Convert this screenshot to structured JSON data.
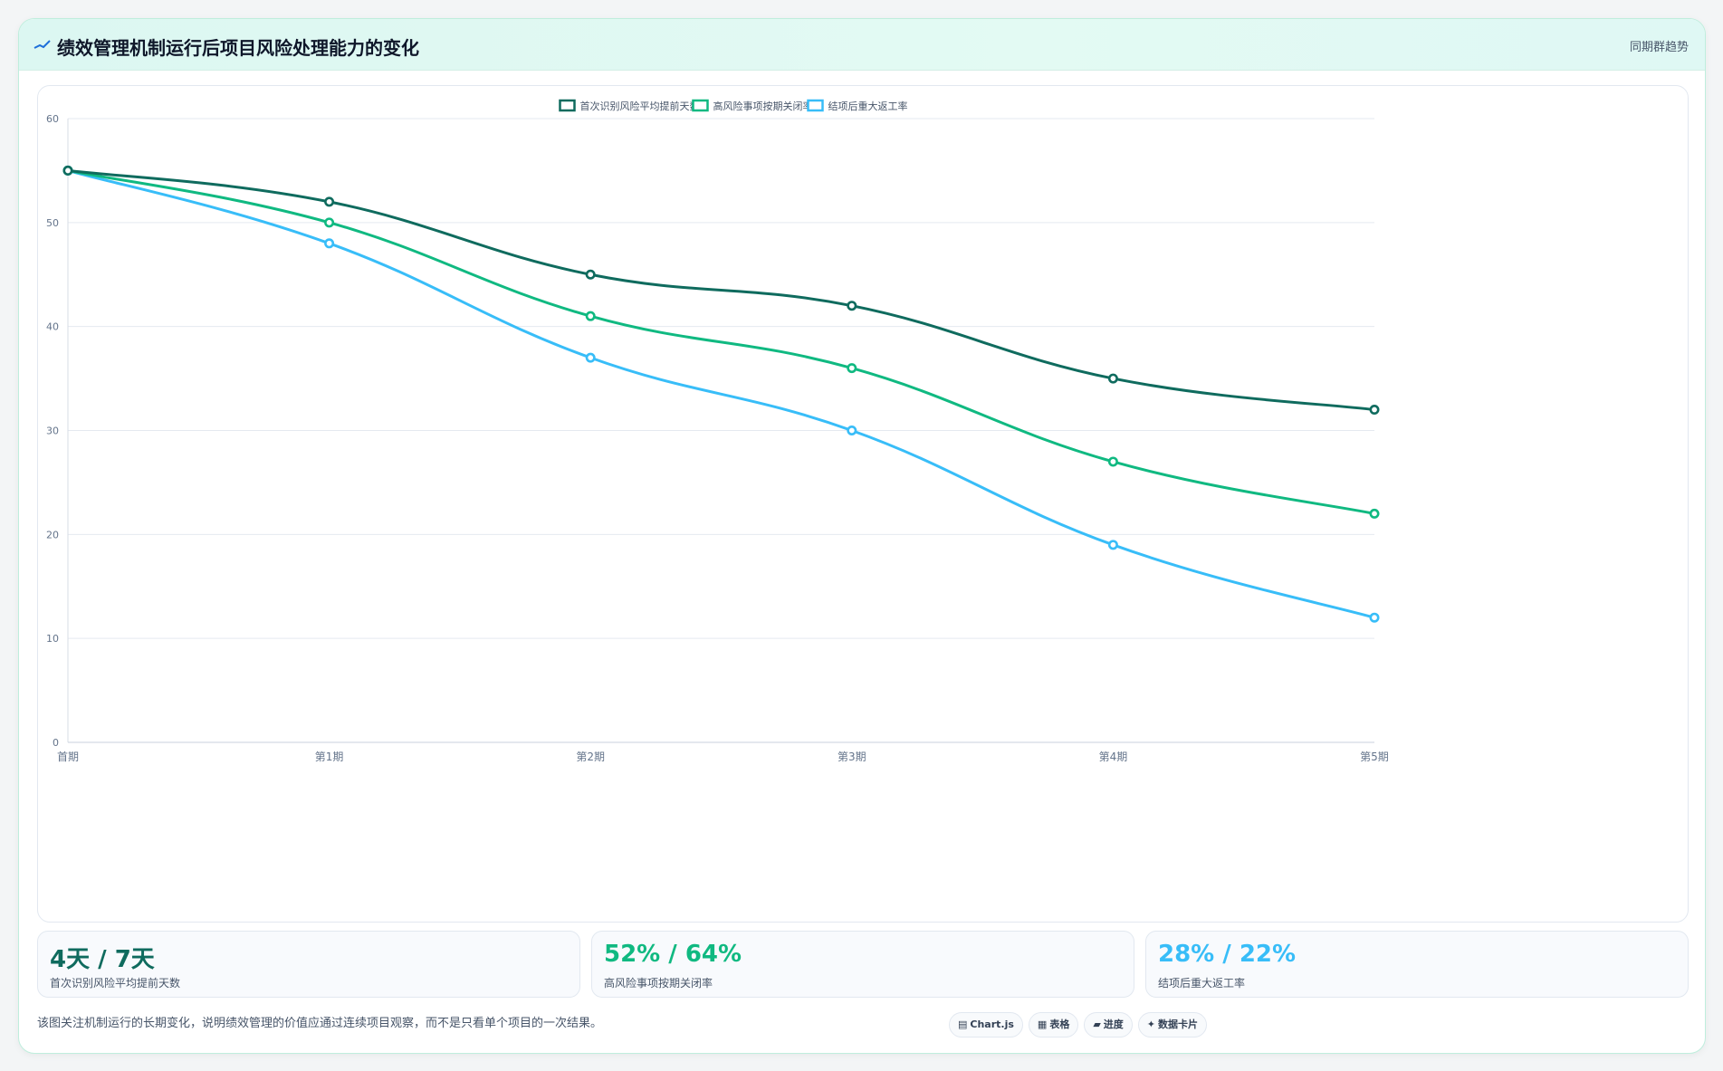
{
  "header": {
    "title": "绩效管理机制运行后项目风险处理能力的变化",
    "right_label": "同期群趋势"
  },
  "chart_data": {
    "type": "line",
    "categories": [
      "首期",
      "第1期",
      "第2期",
      "第3期",
      "第4期",
      "第5期"
    ],
    "series": [
      {
        "name": "首次识别风险平均提前天数",
        "color": "#0f6b5e",
        "values": [
          55,
          52,
          45,
          42,
          35,
          32
        ]
      },
      {
        "name": "高风险事项按期关闭率",
        "color": "#10b981",
        "values": [
          55,
          50,
          41,
          36,
          27,
          22
        ]
      },
      {
        "name": "结项后重大返工率",
        "color": "#38bdf8",
        "values": [
          55,
          48,
          37,
          30,
          19,
          12
        ]
      }
    ],
    "ylim": [
      0,
      60
    ],
    "yticks": [
      0,
      10,
      20,
      30,
      40,
      50,
      60
    ],
    "grid": true,
    "legend_position": "top-center"
  },
  "stats": [
    {
      "value": "4天 / 7天",
      "label": "首次识别风险平均提前天数",
      "color": "#0f6b5e"
    },
    {
      "value": "52% / 64%",
      "label": "高风险事项按期关闭率",
      "color": "#10b981"
    },
    {
      "value": "28% / 22%",
      "label": "结项后重大返工率",
      "color": "#38bdf8"
    }
  ],
  "footnote": "该图关注机制运行的长期变化，说明绩效管理的价值应通过连续项目观察，而不是只看单个项目的一次结果。",
  "chips": [
    {
      "icon": "chart-icon",
      "glyph": "▤",
      "label": "Chart.js"
    },
    {
      "icon": "table-icon",
      "glyph": "▦",
      "label": "表格"
    },
    {
      "icon": "progress-icon",
      "glyph": "▰",
      "label": "进度"
    },
    {
      "icon": "card-icon",
      "glyph": "✦",
      "label": "数据卡片"
    }
  ]
}
